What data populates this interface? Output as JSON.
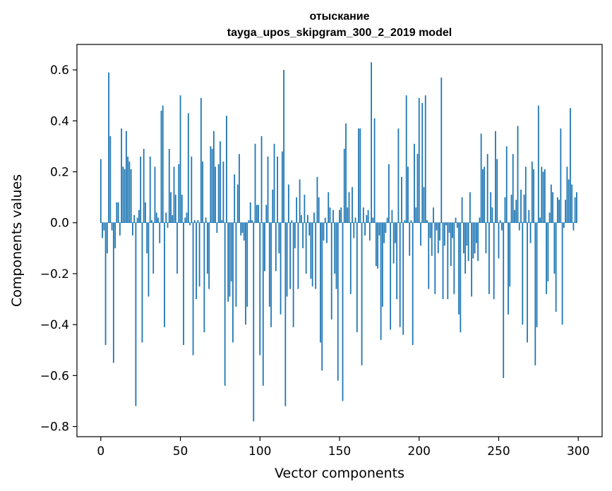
{
  "chart_data": {
    "type": "bar",
    "title": "отыскание",
    "subtitle": "tayga_upos_skipgram_300_2_2019 model",
    "xlabel": "Vector components",
    "ylabel": "Components values",
    "xlim": [
      -15,
      315
    ],
    "ylim": [
      -0.84,
      0.7
    ],
    "xticks": [
      0,
      50,
      100,
      150,
      200,
      250,
      300
    ],
    "xtick_labels": [
      "0",
      "50",
      "100",
      "150",
      "200",
      "250",
      "300"
    ],
    "yticks": [
      -0.8,
      -0.6,
      -0.4,
      -0.2,
      0.0,
      0.2,
      0.4,
      0.6
    ],
    "ytick_labels": [
      "−0.8",
      "−0.6",
      "−0.4",
      "−0.2",
      "0.0",
      "0.2",
      "0.4",
      "0.6"
    ],
    "grid": false,
    "bar_color": "#1f77b4",
    "x_start": 0,
    "values": [
      0.25,
      -0.06,
      -0.03,
      -0.48,
      -0.12,
      0.59,
      0.34,
      -0.03,
      -0.55,
      -0.1,
      0.08,
      0.08,
      -0.05,
      0.37,
      0.22,
      0.21,
      0.36,
      0.26,
      0.24,
      0.21,
      -0.05,
      0.03,
      -0.72,
      0.02,
      0.05,
      0.26,
      -0.47,
      0.29,
      0.08,
      -0.12,
      -0.29,
      0.26,
      0.01,
      -0.2,
      0.22,
      0.04,
      0.02,
      -0.08,
      0.44,
      0.46,
      -0.41,
      0.04,
      -0.02,
      0.29,
      0.12,
      0.03,
      0.22,
      0.11,
      -0.2,
      0.23,
      0.5,
      0.11,
      -0.48,
      0.02,
      0.04,
      0.43,
      -0.01,
      0.26,
      -0.52,
      0.01,
      -0.3,
      0.01,
      -0.25,
      0.49,
      0.24,
      -0.43,
      0.02,
      -0.2,
      -0.26,
      0.3,
      0.29,
      0.36,
      0.22,
      -0.04,
      0.23,
      0.32,
      0.01,
      0.24,
      -0.64,
      0.42,
      -0.31,
      -0.29,
      -0.23,
      -0.47,
      0.19,
      -0.33,
      0.15,
      0.27,
      -0.05,
      -0.04,
      -0.07,
      -0.4,
      -0.33,
      0.01,
      0.08,
      0.01,
      -0.78,
      0.31,
      0.07,
      0.07,
      -0.52,
      0.34,
      -0.64,
      -0.19,
      0.07,
      0.26,
      -0.33,
      -0.41,
      0.13,
      0.31,
      -0.19,
      0.26,
      -0.12,
      -0.36,
      0.28,
      0.6,
      -0.72,
      -0.29,
      0.15,
      -0.26,
      0.01,
      -0.41,
      -0.1,
      0.1,
      -0.26,
      0.17,
      0.03,
      -0.1,
      0.11,
      -0.2,
      0.03,
      -0.05,
      -0.22,
      -0.25,
      0.04,
      -0.26,
      0.18,
      0.1,
      -0.47,
      -0.58,
      -0.07,
      0.02,
      -0.08,
      0.12,
      0.06,
      -0.38,
      0.05,
      -0.2,
      -0.26,
      -0.62,
      0.05,
      0.06,
      -0.7,
      0.29,
      0.39,
      0.06,
      0.12,
      -0.28,
      0.14,
      -0.06,
      0.02,
      -0.43,
      0.37,
      0.37,
      -0.56,
      0.06,
      -0.05,
      0.03,
      0.05,
      -0.07,
      0.63,
      0.02,
      0.41,
      -0.17,
      -0.18,
      -0.05,
      -0.46,
      -0.33,
      -0.08,
      -0.04,
      0.02,
      0.23,
      -0.42,
      0.05,
      -0.16,
      -0.08,
      -0.3,
      0.37,
      -0.41,
      0.18,
      -0.44,
      0.01,
      0.5,
      0.22,
      -0.13,
      0.01,
      -0.48,
      0.31,
      0.06,
      0.27,
      0.49,
      -0.09,
      0.47,
      0.14,
      0.5,
      0.01,
      -0.26,
      -0.06,
      -0.13,
      0.06,
      -0.28,
      -0.03,
      -0.12,
      -0.07,
      0.57,
      -0.3,
      -0.09,
      -0.01,
      -0.3,
      -0.04,
      -0.17,
      -0.06,
      -0.28,
      0.02,
      -0.02,
      -0.36,
      -0.43,
      0.1,
      -0.12,
      -0.2,
      -0.09,
      -0.15,
      0.12,
      -0.29,
      -0.14,
      -0.12,
      -0.08,
      -0.15,
      0.02,
      0.35,
      0.21,
      0.22,
      -0.12,
      0.27,
      -0.28,
      0.12,
      0.06,
      -0.3,
      0.36,
      0.25,
      -0.14,
      0.01,
      -0.03,
      -0.61,
      0.1,
      0.3,
      -0.36,
      -0.25,
      0.11,
      0.27,
      0.05,
      0.09,
      0.38,
      -0.03,
      0.13,
      -0.4,
      0.11,
      0.22,
      -0.47,
      0.05,
      -0.08,
      0.24,
      0.21,
      -0.56,
      -0.41,
      0.46,
      0.02,
      0.22,
      0.2,
      0.21,
      -0.28,
      -0.23,
      0.04,
      0.15,
      0.12,
      -0.2,
      -0.35,
      0.1,
      0.09,
      0.37,
      -0.4,
      -0.02,
      0.09,
      0.22,
      0.17,
      0.45,
      0.15,
      -0.03,
      0.1,
      0.12
    ]
  }
}
